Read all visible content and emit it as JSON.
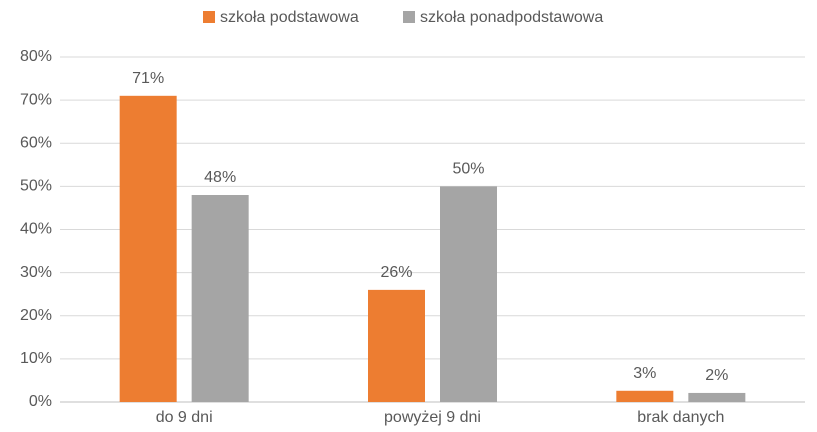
{
  "chart_data": {
    "type": "bar",
    "categories": [
      "do 9 dni",
      "powyżej 9 dni",
      "brak danych"
    ],
    "series": [
      {
        "name": "szkoła podstawowa",
        "color": "#ed7d31",
        "values": [
          71,
          26,
          2.6
        ],
        "value_labels": [
          "71%",
          "26%",
          "3%"
        ]
      },
      {
        "name": "szkoła ponadpodstawowa",
        "color": "#a5a5a5",
        "values": [
          48,
          50,
          2.1
        ],
        "value_labels": [
          "48%",
          "50%",
          "2%"
        ]
      }
    ],
    "ylim": [
      0,
      80
    ],
    "yticks": [
      {
        "value": 0,
        "label": "0%"
      },
      {
        "value": 10,
        "label": "10%"
      },
      {
        "value": 20,
        "label": "20%"
      },
      {
        "value": 30,
        "label": "30%"
      },
      {
        "value": 40,
        "label": "40%"
      },
      {
        "value": 50,
        "label": "50%"
      },
      {
        "value": 60,
        "label": "60%"
      },
      {
        "value": 70,
        "label": "70%"
      },
      {
        "value": 80,
        "label": "80%"
      }
    ],
    "grid": true,
    "legend": "top"
  }
}
